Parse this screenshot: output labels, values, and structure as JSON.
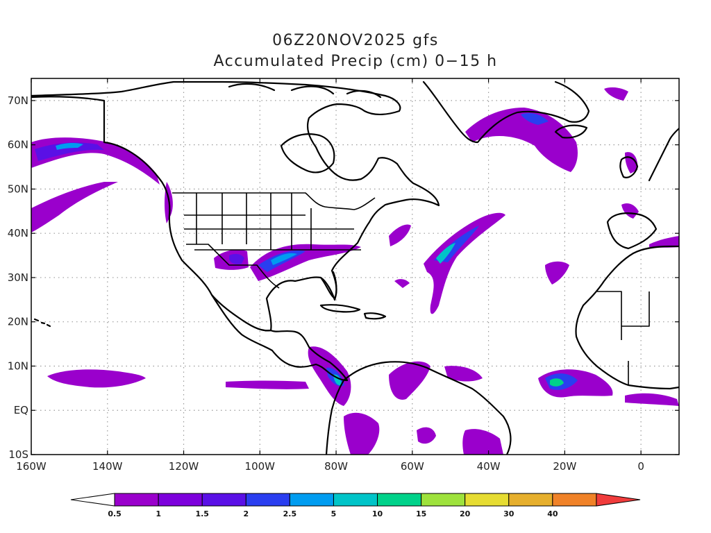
{
  "title": {
    "line1": "06Z20NOV2025 gfs",
    "line2": "Accumulated Precip (cm) 0−15 h"
  },
  "map": {
    "projection": "lat-lon",
    "lon_range": [
      -160,
      10
    ],
    "lat_range": [
      -10,
      75
    ],
    "grid": "dotted",
    "lon_ticks": [
      {
        "value": -160,
        "label": "160W"
      },
      {
        "value": -140,
        "label": "140W"
      },
      {
        "value": -120,
        "label": "120W"
      },
      {
        "value": -100,
        "label": "100W"
      },
      {
        "value": -80,
        "label": "80W"
      },
      {
        "value": -60,
        "label": "60W"
      },
      {
        "value": -40,
        "label": "40W"
      },
      {
        "value": -20,
        "label": "20W"
      },
      {
        "value": 0,
        "label": "0"
      }
    ],
    "lat_ticks": [
      {
        "value": -10,
        "label": "10S"
      },
      {
        "value": 0,
        "label": "EQ"
      },
      {
        "value": 10,
        "label": "10N"
      },
      {
        "value": 20,
        "label": "20N"
      },
      {
        "value": 30,
        "label": "30N"
      },
      {
        "value": 40,
        "label": "40N"
      },
      {
        "value": 50,
        "label": "50N"
      },
      {
        "value": 60,
        "label": "60N"
      },
      {
        "value": 70,
        "label": "70N"
      }
    ]
  },
  "colorbar": {
    "colors": [
      "#ffffff",
      "#9a00cc",
      "#7d00dc",
      "#5a10e6",
      "#2a3ef0",
      "#009cf0",
      "#00c4c8",
      "#00d28a",
      "#9ee23c",
      "#e6dc32",
      "#e6af2d",
      "#f08228",
      "#f03c3c"
    ],
    "labels": [
      "0.5",
      "1",
      "1.5",
      "2",
      "2.5",
      "5",
      "10",
      "15",
      "20",
      "30",
      "40"
    ]
  }
}
